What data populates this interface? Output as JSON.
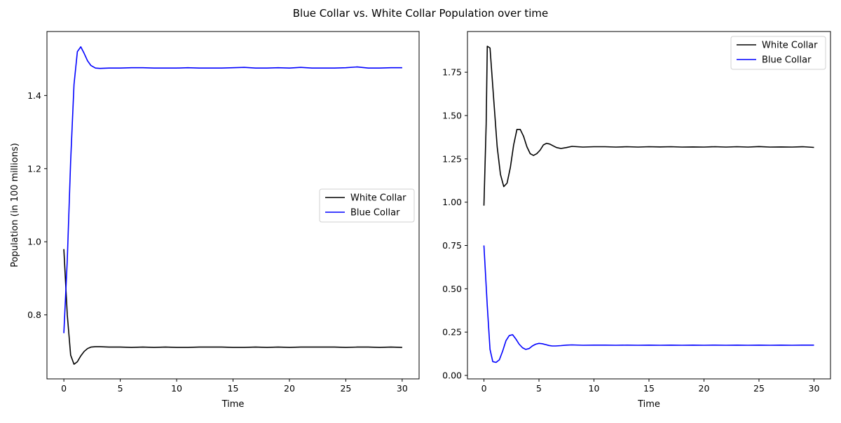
{
  "figure": {
    "suptitle": "Blue Collar vs. White Collar Population over time"
  },
  "chart_data": [
    {
      "type": "line",
      "title": "",
      "xlabel": "Time",
      "ylabel": "Population (in 100 millions)",
      "xlim": [
        -1.5,
        31.5
      ],
      "ylim": [
        0.625,
        1.575
      ],
      "xticks": [
        0,
        5,
        10,
        15,
        20,
        25,
        30
      ],
      "xtick_labels": [
        "0",
        "5",
        "10",
        "15",
        "20",
        "25",
        "30"
      ],
      "yticks": [
        0.8,
        1.0,
        1.2,
        1.4
      ],
      "ytick_labels": [
        "0.8",
        "1.0",
        "1.2",
        "1.4"
      ],
      "grid": false,
      "legend_position": "center-right",
      "series": [
        {
          "name": "White Collar",
          "color": "#000000",
          "x": [
            0,
            0.3,
            0.6,
            0.9,
            1.2,
            1.5,
            1.8,
            2.1,
            2.4,
            2.8,
            3.2,
            4,
            5,
            6,
            7,
            8,
            9,
            10,
            11,
            12,
            13,
            14,
            15,
            16,
            17,
            18,
            19,
            20,
            21,
            22,
            23,
            24,
            25,
            26,
            27,
            28,
            29,
            30
          ],
          "y": [
            0.98,
            0.8,
            0.69,
            0.665,
            0.672,
            0.688,
            0.7,
            0.708,
            0.712,
            0.713,
            0.713,
            0.712,
            0.712,
            0.711,
            0.712,
            0.711,
            0.712,
            0.711,
            0.711,
            0.712,
            0.712,
            0.712,
            0.711,
            0.711,
            0.712,
            0.711,
            0.712,
            0.711,
            0.712,
            0.712,
            0.712,
            0.712,
            0.711,
            0.712,
            0.712,
            0.711,
            0.712,
            0.711
          ]
        },
        {
          "name": "Blue Collar",
          "color": "#0000ff",
          "x": [
            0,
            0.3,
            0.6,
            0.9,
            1.2,
            1.5,
            1.8,
            2.1,
            2.4,
            2.8,
            3.2,
            4,
            5,
            6,
            7,
            8,
            9,
            10,
            11,
            12,
            13,
            14,
            15,
            16,
            17,
            18,
            19,
            20,
            21,
            22,
            23,
            24,
            25,
            26,
            27,
            28,
            29,
            30
          ],
          "y": [
            0.75,
            0.95,
            1.22,
            1.43,
            1.52,
            1.533,
            1.515,
            1.495,
            1.482,
            1.475,
            1.474,
            1.475,
            1.475,
            1.476,
            1.476,
            1.475,
            1.475,
            1.475,
            1.476,
            1.475,
            1.475,
            1.475,
            1.476,
            1.477,
            1.475,
            1.475,
            1.476,
            1.475,
            1.477,
            1.475,
            1.475,
            1.475,
            1.476,
            1.478,
            1.475,
            1.475,
            1.476,
            1.476
          ]
        }
      ]
    },
    {
      "type": "line",
      "title": "",
      "xlabel": "Time",
      "ylabel": "",
      "xlim": [
        -1.5,
        31.5
      ],
      "ylim": [
        -0.02,
        1.985
      ],
      "xticks": [
        0,
        5,
        10,
        15,
        20,
        25,
        30
      ],
      "xtick_labels": [
        "0",
        "5",
        "10",
        "15",
        "20",
        "25",
        "30"
      ],
      "yticks": [
        0.0,
        0.25,
        0.5,
        0.75,
        1.0,
        1.25,
        1.5,
        1.75
      ],
      "ytick_labels": [
        "0.00",
        "0.25",
        "0.50",
        "0.75",
        "1.00",
        "1.25",
        "1.50",
        "1.75"
      ],
      "grid": false,
      "legend_position": "upper-right",
      "series": [
        {
          "name": "White Collar",
          "color": "#000000",
          "x": [
            0,
            0.2,
            0.3,
            0.55,
            0.9,
            1.2,
            1.5,
            1.8,
            2.1,
            2.4,
            2.7,
            3.0,
            3.3,
            3.6,
            3.9,
            4.2,
            4.5,
            4.8,
            5.1,
            5.4,
            5.7,
            6.0,
            6.3,
            6.6,
            7,
            7.5,
            8,
            9,
            10,
            11,
            12,
            13,
            14,
            15,
            16,
            17,
            18,
            19,
            20,
            21,
            22,
            23,
            24,
            25,
            26,
            27,
            28,
            29,
            30
          ],
          "y": [
            0.98,
            1.45,
            1.9,
            1.89,
            1.58,
            1.32,
            1.16,
            1.09,
            1.11,
            1.2,
            1.33,
            1.42,
            1.42,
            1.38,
            1.32,
            1.28,
            1.27,
            1.28,
            1.3,
            1.33,
            1.34,
            1.335,
            1.325,
            1.315,
            1.31,
            1.315,
            1.322,
            1.318,
            1.32,
            1.32,
            1.318,
            1.32,
            1.318,
            1.32,
            1.319,
            1.32,
            1.318,
            1.319,
            1.318,
            1.32,
            1.318,
            1.32,
            1.318,
            1.321,
            1.318,
            1.319,
            1.318,
            1.32,
            1.316
          ]
        },
        {
          "name": "Blue Collar",
          "color": "#0000ff",
          "x": [
            0,
            0.3,
            0.55,
            0.8,
            1.1,
            1.4,
            1.7,
            2.0,
            2.3,
            2.6,
            2.9,
            3.2,
            3.5,
            3.8,
            4.1,
            4.4,
            4.7,
            5.0,
            5.3,
            5.6,
            5.9,
            6.2,
            6.5,
            7,
            7.5,
            8,
            9,
            10,
            11,
            12,
            13,
            14,
            15,
            16,
            17,
            18,
            19,
            20,
            21,
            22,
            23,
            24,
            25,
            26,
            27,
            28,
            29,
            30
          ],
          "y": [
            0.75,
            0.4,
            0.15,
            0.08,
            0.075,
            0.09,
            0.14,
            0.2,
            0.23,
            0.235,
            0.21,
            0.18,
            0.16,
            0.15,
            0.155,
            0.17,
            0.18,
            0.185,
            0.183,
            0.178,
            0.173,
            0.17,
            0.17,
            0.172,
            0.175,
            0.176,
            0.174,
            0.175,
            0.175,
            0.174,
            0.175,
            0.174,
            0.175,
            0.174,
            0.175,
            0.174,
            0.175,
            0.174,
            0.175,
            0.174,
            0.175,
            0.174,
            0.175,
            0.174,
            0.175,
            0.174,
            0.175,
            0.175
          ]
        }
      ]
    }
  ]
}
